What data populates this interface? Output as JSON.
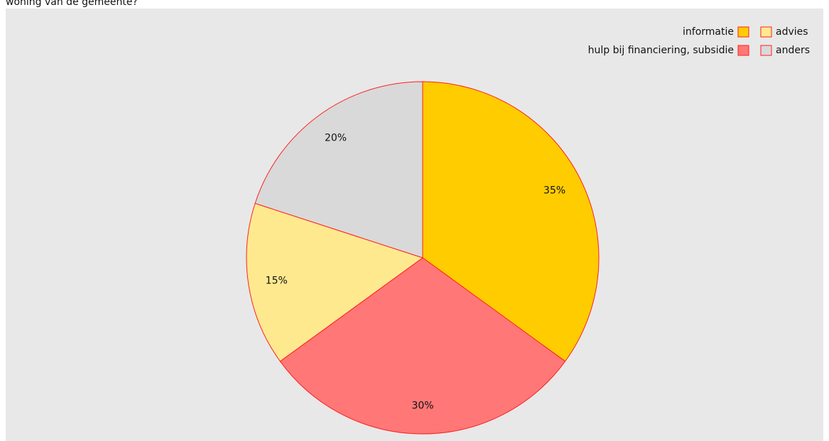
{
  "chart_data": {
    "type": "pie",
    "title": "woning van de gemeente?",
    "categories": [
      "informatie",
      "hulp bij financiering, subsidie",
      "advies",
      "anders"
    ],
    "values": [
      35,
      30,
      15,
      20
    ],
    "value_labels": [
      "35%",
      "30%",
      "15%",
      "20%"
    ],
    "colors": [
      "#ffcc00",
      "#ff7777",
      "#ffe98f",
      "#d9d9d9"
    ],
    "edge_color": "#ff2020",
    "legend": "top-right"
  }
}
